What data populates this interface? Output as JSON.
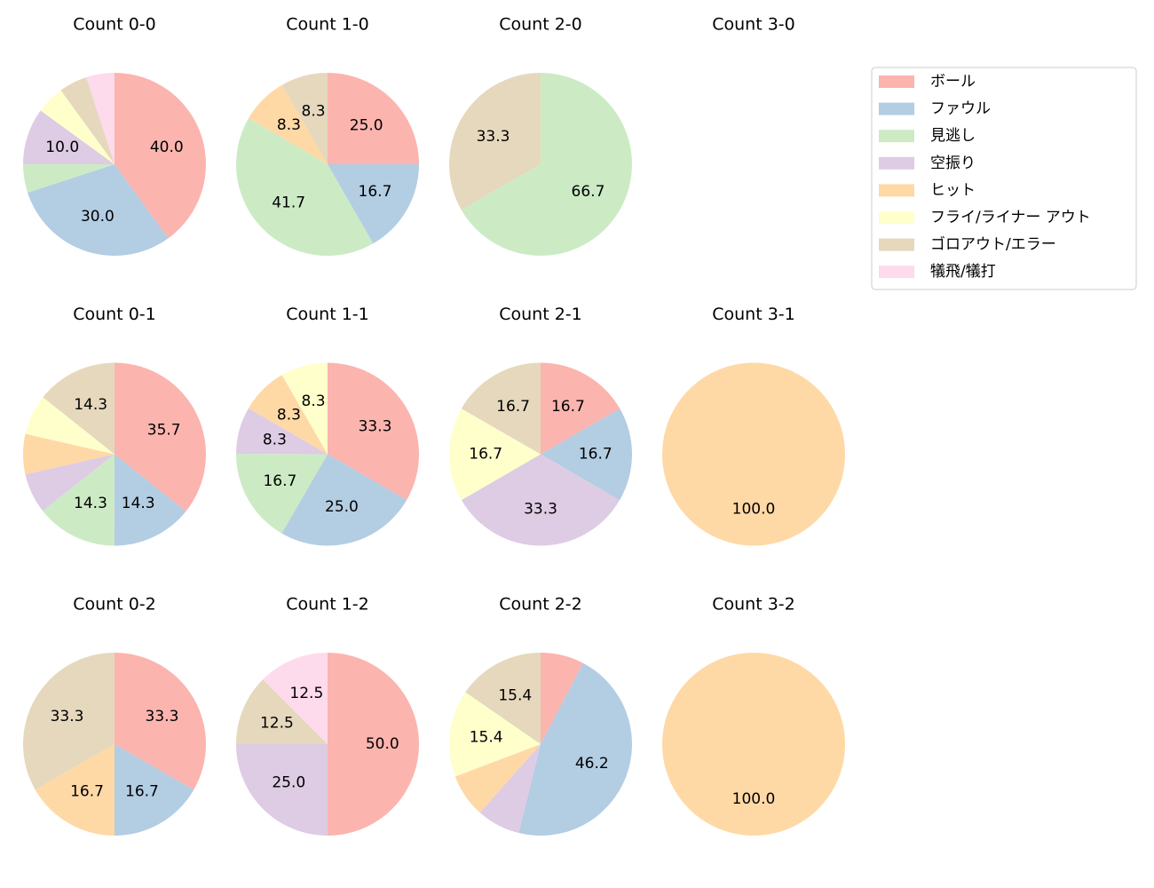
{
  "legend": {
    "entries": [
      "ボール",
      "ファウル",
      "見逃し",
      "空振り",
      "ヒット",
      "フライ/ライナー アウト",
      "ゴロアウト/エラー",
      "犠飛/犠打"
    ],
    "colors": [
      "#fbb4ae",
      "#b3cde3",
      "#ccebc5",
      "#decbe4",
      "#fed9a6",
      "#ffffcc",
      "#e5d8bd",
      "#fddaec"
    ]
  },
  "chart_data": [
    {
      "type": "pie",
      "title": "Count 0-0",
      "values": [
        40,
        30,
        5,
        10,
        0,
        5,
        5,
        5
      ],
      "value_labels": [
        "40.0",
        "30.0",
        null,
        "10.0",
        null,
        null,
        null,
        null
      ]
    },
    {
      "type": "pie",
      "title": "Count 1-0",
      "values": [
        25,
        16.7,
        41.7,
        0,
        8.3,
        0,
        8.3,
        0
      ],
      "value_labels": [
        "25.0",
        "16.7",
        "41.7",
        null,
        "8.3",
        null,
        "8.3",
        null
      ]
    },
    {
      "type": "pie",
      "title": "Count 2-0",
      "values": [
        0,
        0,
        66.7,
        0,
        0,
        0,
        33.3,
        0
      ],
      "value_labels": [
        null,
        null,
        "66.7",
        null,
        null,
        null,
        "33.3",
        null
      ]
    },
    {
      "type": "pie",
      "title": "Count 3-0"
    },
    {
      "type": "pie",
      "title": "Count 0-1",
      "values": [
        35.7,
        14.3,
        14.3,
        7.1,
        7.1,
        7.1,
        14.3,
        0
      ],
      "value_labels": [
        "35.7",
        "14.3",
        "14.3",
        null,
        null,
        null,
        "14.3",
        null
      ]
    },
    {
      "type": "pie",
      "title": "Count 1-1",
      "values": [
        33.3,
        25,
        16.7,
        8.3,
        8.3,
        8.3,
        0,
        0
      ],
      "value_labels": [
        "33.3",
        "25.0",
        "16.7",
        "8.3",
        "8.3",
        "8.3",
        null,
        null
      ]
    },
    {
      "type": "pie",
      "title": "Count 2-1",
      "values": [
        16.7,
        16.7,
        0,
        33.3,
        0,
        16.7,
        16.7,
        0
      ],
      "value_labels": [
        "16.7",
        "16.7",
        null,
        "33.3",
        null,
        "16.7",
        "16.7",
        null
      ]
    },
    {
      "type": "pie",
      "title": "Count 3-1",
      "values": [
        0,
        0,
        0,
        0,
        100,
        0,
        0,
        0
      ],
      "value_labels": [
        null,
        null,
        null,
        null,
        "100.0",
        null,
        null,
        null
      ]
    },
    {
      "type": "pie",
      "title": "Count 0-2",
      "values": [
        33.3,
        16.7,
        0,
        0,
        16.7,
        0,
        33.3,
        0
      ],
      "value_labels": [
        "33.3",
        "16.7",
        null,
        null,
        "16.7",
        null,
        "33.3",
        null
      ]
    },
    {
      "type": "pie",
      "title": "Count 1-2",
      "values": [
        50,
        0,
        0,
        25,
        0,
        0,
        12.5,
        12.5
      ],
      "value_labels": [
        "50.0",
        null,
        null,
        "25.0",
        null,
        null,
        "12.5",
        "12.5"
      ]
    },
    {
      "type": "pie",
      "title": "Count 2-2",
      "values": [
        7.7,
        46.2,
        0,
        7.7,
        7.7,
        15.4,
        15.4,
        0
      ],
      "value_labels": [
        null,
        "46.2",
        null,
        null,
        null,
        "15.4",
        "15.4",
        null
      ]
    },
    {
      "type": "pie",
      "title": "Count 3-2",
      "values": [
        0,
        0,
        0,
        0,
        100,
        0,
        0,
        0
      ],
      "value_labels": [
        null,
        null,
        null,
        null,
        "100.0",
        null,
        null,
        null
      ]
    }
  ]
}
